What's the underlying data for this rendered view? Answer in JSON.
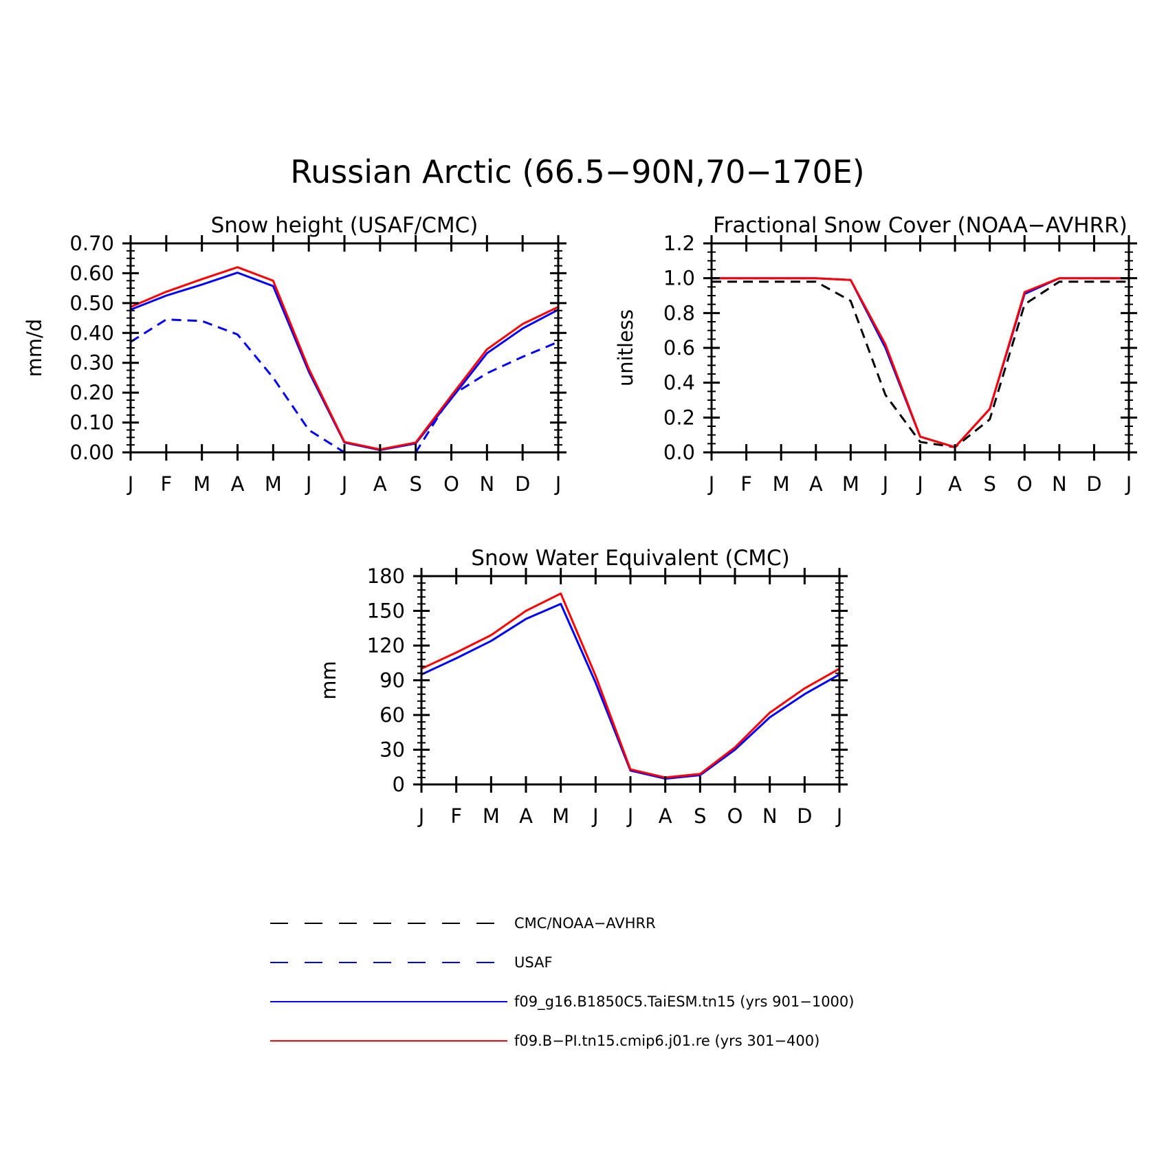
{
  "figure": {
    "title": "Russian Arctic (66.5−90N,70−170E)"
  },
  "series_styles": [
    {
      "key": "cmc",
      "color": "#000000",
      "dash": "dashed"
    },
    {
      "key": "usaf",
      "color": "#0000ff",
      "dash": "dashed"
    },
    {
      "key": "taiesm",
      "color": "#0000ff",
      "dash": "solid"
    },
    {
      "key": "cmip6",
      "color": "#ff0000",
      "dash": "solid"
    }
  ],
  "legend": {
    "items": [
      {
        "key": "cmc",
        "label": "CMC/NOAA−AVHRR"
      },
      {
        "key": "usaf",
        "label": "USAF"
      },
      {
        "key": "taiesm",
        "label": "f09_g16.B1850C5.TaiESM.tn15 (yrs 901−1000)"
      },
      {
        "key": "cmip6",
        "label": "f09.B−PI.tn15.cmip6.j01.re (yrs 301−400)"
      }
    ]
  },
  "chart_data": [
    {
      "type": "line",
      "title": "Snow height (USAF/CMC)",
      "xlabel": "",
      "ylabel": "mm/d",
      "categories": [
        "J",
        "F",
        "M",
        "A",
        "M",
        "J",
        "J",
        "A",
        "S",
        "O",
        "N",
        "D",
        "J"
      ],
      "ylim": [
        0,
        0.7
      ],
      "yticks": [
        "0.00",
        "0.10",
        "0.20",
        "0.30",
        "0.40",
        "0.50",
        "0.60",
        "0.70"
      ],
      "series": [
        {
          "key": "cmc",
          "values": [
            0,
            0,
            0,
            0,
            0,
            0,
            0,
            0,
            0,
            0,
            0,
            0,
            0
          ]
        },
        {
          "key": "usaf",
          "values": [
            0.37,
            0.445,
            0.44,
            0.395,
            0.25,
            0.075,
            0.0,
            0.0,
            0.0,
            0.19,
            0.265,
            0.32,
            0.37
          ]
        },
        {
          "key": "taiesm",
          "values": [
            0.478,
            0.525,
            0.562,
            0.602,
            0.557,
            0.27,
            0.033,
            0.008,
            0.03,
            0.18,
            0.332,
            0.415,
            0.478
          ]
        },
        {
          "key": "cmip6",
          "values": [
            0.487,
            0.538,
            0.58,
            0.62,
            0.575,
            0.28,
            0.035,
            0.01,
            0.033,
            0.19,
            0.345,
            0.43,
            0.487
          ]
        }
      ]
    },
    {
      "type": "line",
      "title": "Fractional Snow Cover (NOAA−AVHRR)",
      "xlabel": "",
      "ylabel": "unitless",
      "categories": [
        "J",
        "F",
        "M",
        "A",
        "M",
        "J",
        "J",
        "A",
        "S",
        "O",
        "N",
        "D",
        "J"
      ],
      "ylim": [
        0,
        1.2
      ],
      "yticks": [
        "0.0",
        "0.2",
        "0.4",
        "0.6",
        "0.8",
        "1.0",
        "1.2"
      ],
      "series": [
        {
          "key": "cmc",
          "values": [
            0.98,
            0.98,
            0.98,
            0.98,
            0.87,
            0.33,
            0.06,
            0.03,
            0.19,
            0.85,
            0.98,
            0.98,
            0.98
          ]
        },
        {
          "key": "taiesm",
          "values": [
            1.0,
            1.0,
            1.0,
            1.0,
            0.99,
            0.6,
            0.09,
            0.03,
            0.25,
            0.91,
            1.0,
            1.0,
            1.0
          ]
        },
        {
          "key": "cmip6",
          "values": [
            1.0,
            1.0,
            1.0,
            1.0,
            0.99,
            0.62,
            0.09,
            0.03,
            0.25,
            0.92,
            1.0,
            1.0,
            1.0
          ]
        }
      ]
    },
    {
      "type": "line",
      "title": "Snow Water Equivalent (CMC)",
      "xlabel": "",
      "ylabel": "mm",
      "categories": [
        "J",
        "F",
        "M",
        "A",
        "M",
        "J",
        "J",
        "A",
        "S",
        "O",
        "N",
        "D",
        "J"
      ],
      "ylim": [
        0,
        180
      ],
      "yticks": [
        "0",
        "30",
        "60",
        "90",
        "120",
        "150",
        "180"
      ],
      "series": [
        {
          "key": "cmc",
          "values": [
            0,
            0,
            0,
            0,
            0,
            0,
            0,
            0,
            0,
            0,
            0,
            0,
            0
          ]
        },
        {
          "key": "taiesm",
          "values": [
            95,
            109,
            124,
            143,
            156,
            88,
            12,
            5,
            8,
            30,
            58,
            78,
            95
          ]
        },
        {
          "key": "cmip6",
          "values": [
            100,
            114,
            129,
            150,
            165,
            94,
            13,
            6,
            9,
            32,
            62,
            83,
            100
          ]
        }
      ]
    }
  ]
}
